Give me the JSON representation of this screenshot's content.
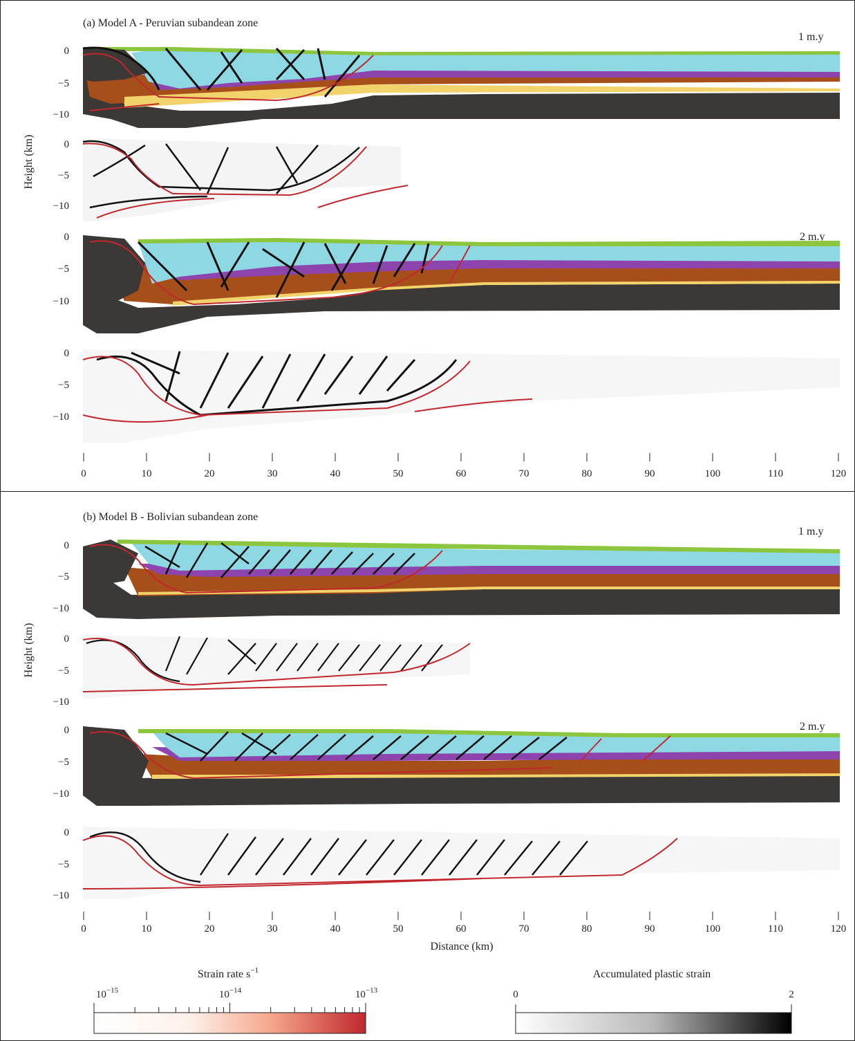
{
  "colors": {
    "green": "#8cc63f",
    "cyan": "#8ed8e4",
    "purple": "#8e44ad",
    "brown": "#a64f1a",
    "yellow": "#f2d36b",
    "dark": "#3b3836",
    "fault_red": "#c0282d",
    "fault_black": "#111111"
  },
  "panel_a": {
    "title": "(a) Model A - Peruvian subandean zone",
    "ylabel": "Height (km)",
    "time1": "1 m.y",
    "time2": "2 m.y",
    "yticks": [
      "0",
      "−5",
      "−10"
    ],
    "xticks": [
      "0",
      "10",
      "20",
      "30",
      "40",
      "50",
      "60",
      "70",
      "80",
      "90",
      "100",
      "110",
      "120"
    ]
  },
  "panel_b": {
    "title": "(b) Model B - Bolivian subandean zone",
    "ylabel": "Height (km)",
    "time1": "1 m.y",
    "time2": "2 m.y",
    "yticks": [
      "0",
      "−5",
      "−10"
    ],
    "xticks": [
      "0",
      "10",
      "20",
      "30",
      "40",
      "50",
      "60",
      "70",
      "80",
      "90",
      "100",
      "110",
      "120"
    ],
    "xlabel": "Distance (km)"
  },
  "legend": {
    "strain_rate": {
      "title": "Strain rate s",
      "title_sup": "−1",
      "min_base": "10",
      "min_exp": "−15",
      "mid_base": "10",
      "mid_exp": "−14",
      "max_base": "10",
      "max_exp": "−13",
      "color_low": "#ffffff",
      "color_high": "#c0282d"
    },
    "plastic_strain": {
      "title": "Accumulated plastic strain",
      "min": "0",
      "max": "2",
      "color_low": "#ffffff",
      "color_high": "#000000"
    }
  }
}
